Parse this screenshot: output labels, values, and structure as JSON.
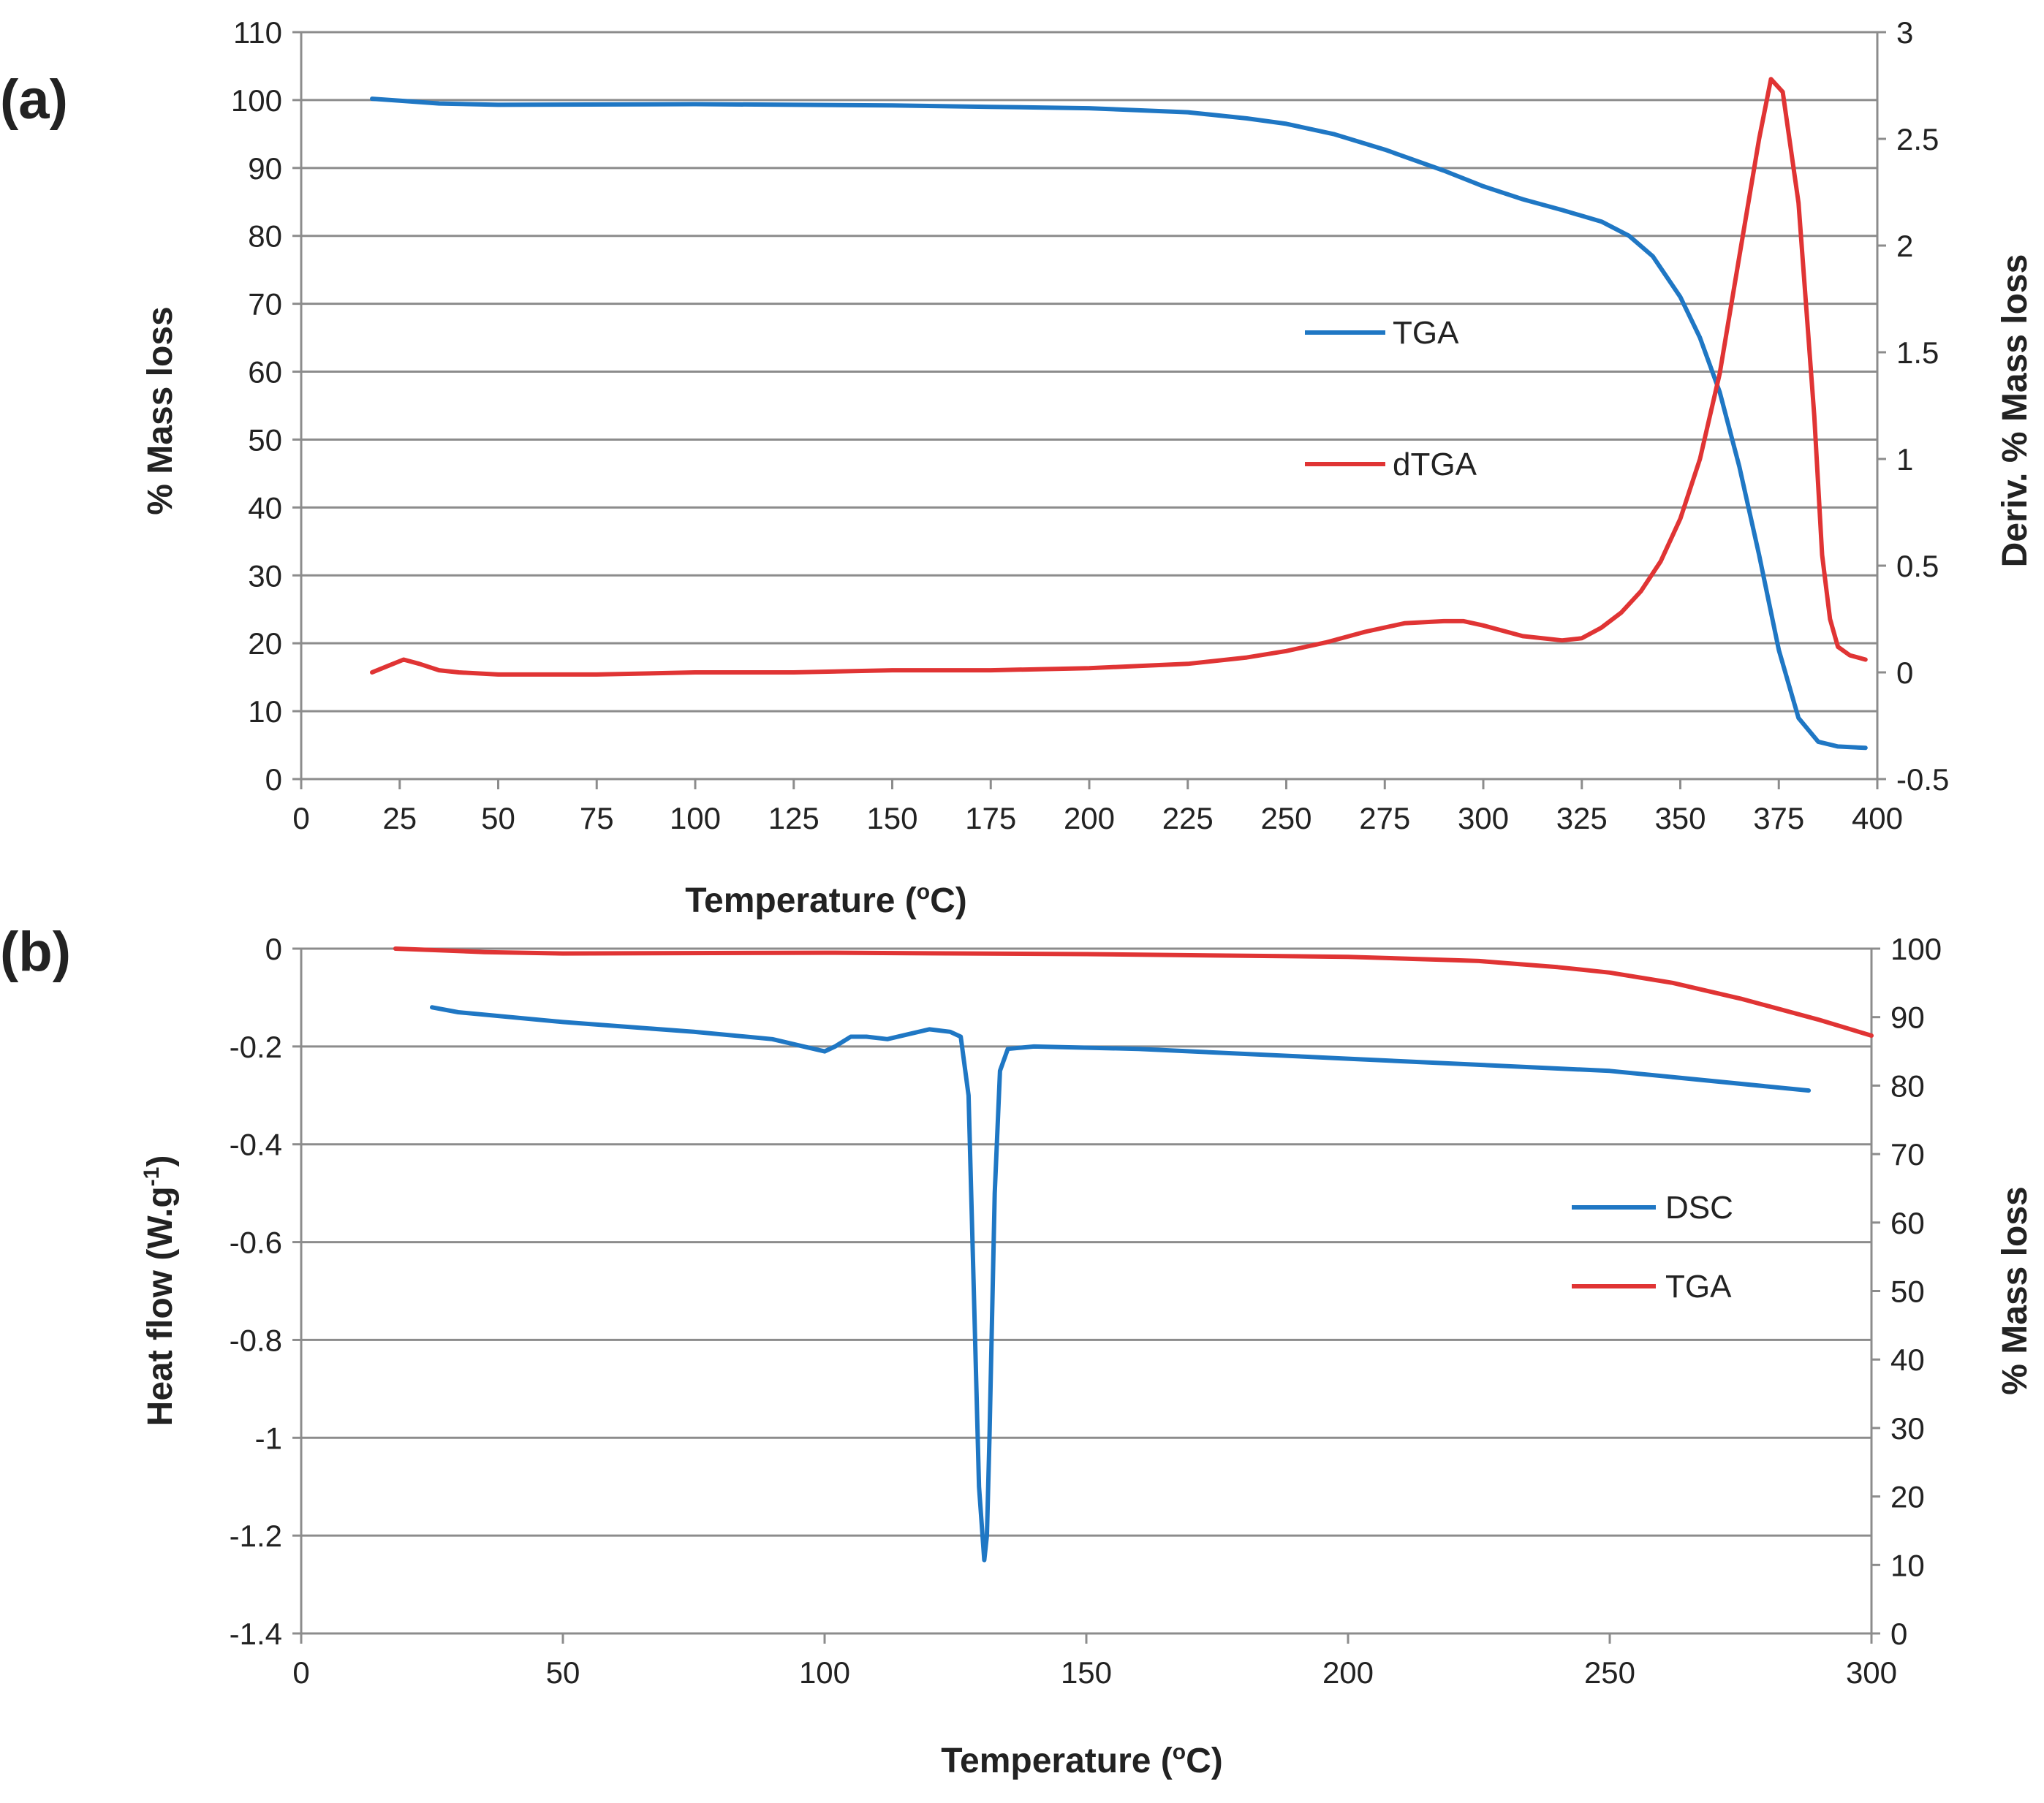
{
  "chart_data": [
    {
      "panel": "(a)",
      "type": "line",
      "title": "",
      "xlabel": "Temperature (",
      "xlabel_sup": "o",
      "xlabel_end": "C)",
      "ylabel": "% Mass loss",
      "y2label": "Deriv. % Mass loss",
      "xlim": [
        0,
        400
      ],
      "ylim": [
        0,
        110
      ],
      "y2lim": [
        -0.5,
        3
      ],
      "xticks": [
        "0",
        "25",
        "50",
        "75",
        "100",
        "125",
        "150",
        "175",
        "200",
        "225",
        "250",
        "275",
        "300",
        "325",
        "350",
        "375",
        "400"
      ],
      "yticks": [
        "0",
        "10",
        "20",
        "30",
        "40",
        "50",
        "60",
        "70",
        "80",
        "90",
        "100",
        "110"
      ],
      "y2ticks": [
        "-0.5",
        "0",
        "0.5",
        "1",
        "1.5",
        "2",
        "2.5",
        "3"
      ],
      "grid": true,
      "legend_position": "center-right",
      "series": [
        {
          "name": "TGA",
          "axis": "left",
          "color": "#1f77c4",
          "x": [
            18,
            25,
            35,
            50,
            100,
            150,
            175,
            200,
            225,
            240,
            250,
            262,
            275,
            290,
            300,
            310,
            320,
            330,
            337,
            343,
            350,
            355,
            360,
            365,
            370,
            375,
            380,
            385,
            390,
            397
          ],
          "y": [
            100.2,
            99.9,
            99.5,
            99.3,
            99.4,
            99.2,
            99.0,
            98.8,
            98.2,
            97.3,
            96.5,
            95.0,
            92.7,
            89.6,
            87.3,
            85.4,
            83.8,
            82.1,
            80.0,
            77.0,
            71.0,
            65.0,
            57.0,
            46.0,
            33.0,
            19.0,
            9.0,
            5.5,
            4.8,
            4.6
          ]
        },
        {
          "name": "dTGA",
          "axis": "right",
          "color": "#e03434",
          "x": [
            18,
            22,
            26,
            30,
            35,
            40,
            50,
            75,
            100,
            125,
            150,
            175,
            200,
            225,
            240,
            250,
            260,
            270,
            280,
            290,
            295,
            300,
            310,
            320,
            325,
            330,
            335,
            340,
            345,
            350,
            355,
            360,
            365,
            370,
            373,
            376,
            380,
            384,
            386,
            388,
            390,
            393,
            397
          ],
          "y": [
            0.0,
            0.03,
            0.06,
            0.04,
            0.01,
            0.0,
            -0.01,
            -0.01,
            0.0,
            0.0,
            0.01,
            0.01,
            0.02,
            0.04,
            0.07,
            0.1,
            0.14,
            0.19,
            0.23,
            0.24,
            0.24,
            0.22,
            0.17,
            0.15,
            0.16,
            0.21,
            0.28,
            0.38,
            0.52,
            0.72,
            1.0,
            1.4,
            1.95,
            2.5,
            2.78,
            2.72,
            2.2,
            1.2,
            0.55,
            0.25,
            0.12,
            0.08,
            0.06
          ]
        }
      ]
    },
    {
      "panel": "(b)",
      "type": "line",
      "title": "",
      "xlabel": "Temperature (",
      "xlabel_sup": "o",
      "xlabel_end": "C)",
      "ylabel": "Heat flow (W.g",
      "ylabel_sup": "-1",
      "ylabel_end": ")",
      "y2label": "% Mass loss",
      "xlim": [
        0,
        300
      ],
      "ylim": [
        -1.4,
        0
      ],
      "y2lim": [
        0,
        100
      ],
      "xticks": [
        "0",
        "50",
        "100",
        "150",
        "200",
        "250",
        "300"
      ],
      "yticks": [
        "-1.4",
        "-1.2",
        "-1",
        "-0.8",
        "-0.6",
        "-0.4",
        "-0.2",
        "0"
      ],
      "y2ticks": [
        "0",
        "10",
        "20",
        "30",
        "40",
        "50",
        "60",
        "70",
        "80",
        "90",
        "100"
      ],
      "grid": true,
      "legend_position": "center-right",
      "series": [
        {
          "name": "DSC",
          "axis": "left",
          "color": "#1f77c4",
          "x": [
            25,
            30,
            50,
            75,
            90,
            96,
            100,
            102,
            105,
            108,
            112,
            116,
            120,
            124,
            126,
            127.5,
            128.5,
            129.5,
            130.5,
            131,
            131.5,
            132.5,
            133.5,
            135,
            140,
            160,
            200,
            250,
            288
          ],
          "y": [
            -0.12,
            -0.13,
            -0.15,
            -0.17,
            -0.185,
            -0.2,
            -0.21,
            -0.2,
            -0.18,
            -0.18,
            -0.185,
            -0.175,
            -0.165,
            -0.17,
            -0.18,
            -0.3,
            -0.7,
            -1.1,
            -1.25,
            -1.2,
            -1.0,
            -0.5,
            -0.25,
            -0.205,
            -0.2,
            -0.205,
            -0.225,
            -0.25,
            -0.29
          ]
        },
        {
          "name": "TGA",
          "axis": "right",
          "color": "#e03434",
          "x": [
            18,
            25,
            35,
            50,
            100,
            150,
            175,
            200,
            225,
            240,
            250,
            262,
            275,
            290,
            300
          ],
          "y": [
            100.0,
            99.8,
            99.5,
            99.3,
            99.4,
            99.2,
            99.0,
            98.8,
            98.2,
            97.3,
            96.5,
            95.0,
            92.7,
            89.6,
            87.3
          ]
        }
      ]
    }
  ]
}
